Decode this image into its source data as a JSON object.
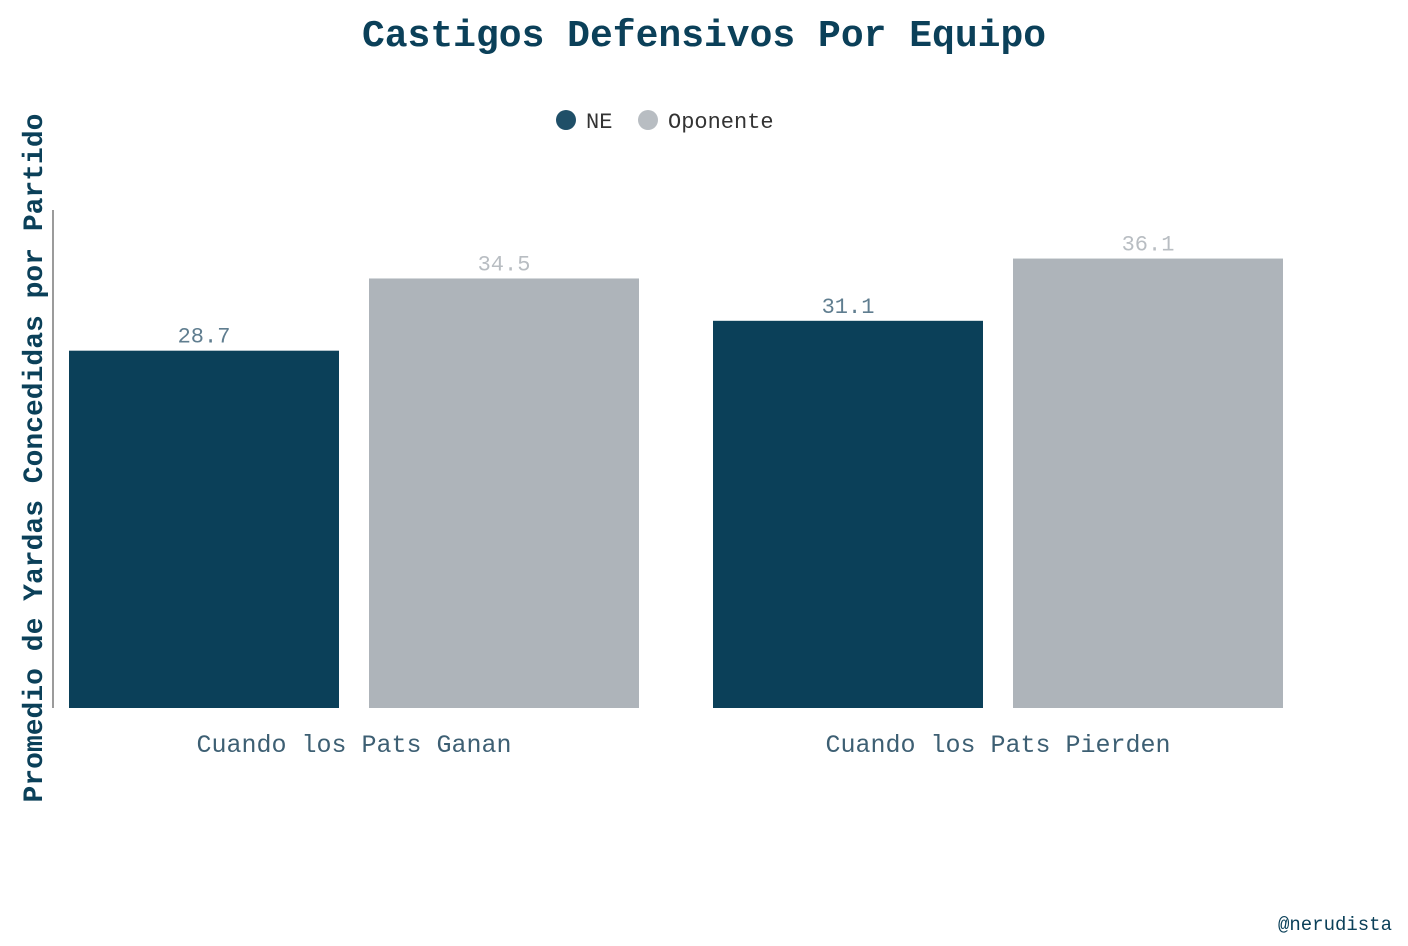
{
  "chart_data": {
    "type": "bar",
    "title": "Castigos Defensivos Por Equipo",
    "ylabel": "Promedio de Yardas Concedidas por Partido",
    "xlabel": "",
    "categories": [
      "Cuando los Pats Ganan",
      "Cuando los Pats Pierden"
    ],
    "series": [
      {
        "name": "NE",
        "values": [
          28.7,
          31.1
        ],
        "color": "#0b4059"
      },
      {
        "name": "Oponente",
        "values": [
          34.5,
          36.1
        ],
        "color": "#aeb4ba"
      }
    ],
    "data_labels": [
      [
        "28.7",
        "31.1"
      ],
      [
        "34.5",
        "36.1"
      ]
    ],
    "ylim": [
      0,
      40
    ],
    "grid": false,
    "legend_position": "top-center",
    "show_y_ticks": false
  },
  "credit": "@nerudista",
  "colors": {
    "title": "#0b4059",
    "axis_line": "#7a7a7a",
    "ne_label": "#5f7d8f",
    "oponente_label": "#b8bdc2",
    "category_label": "#3d5f73",
    "legend_text": "#333333",
    "credit": "#0b4059"
  }
}
